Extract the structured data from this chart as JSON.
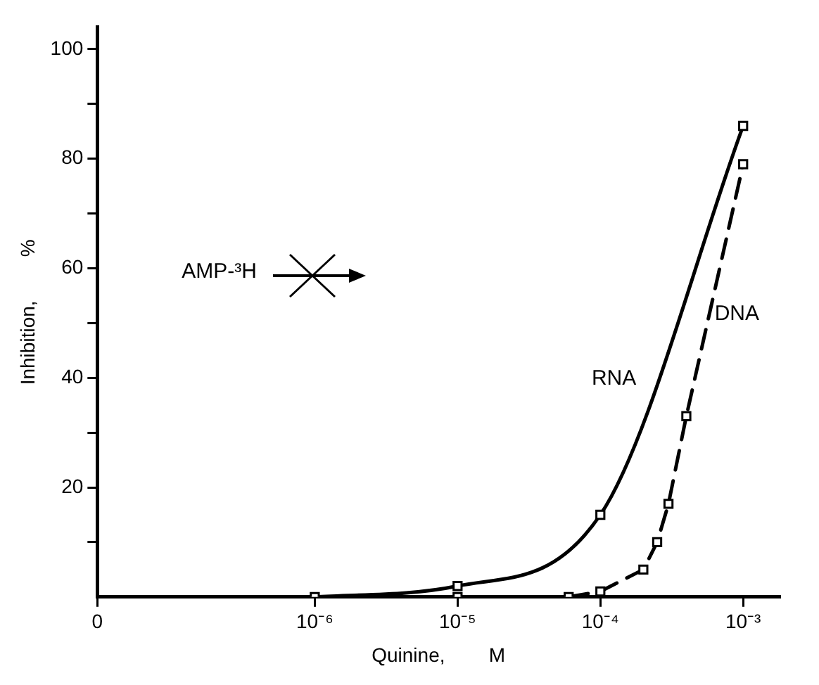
{
  "chart_data": {
    "type": "line",
    "xlabel": "Quinine,        M",
    "ylabel": "Inhibition,        %",
    "log": "x",
    "xlim": [
      3e-08,
      0.0018
    ],
    "xticks": [
      {
        "value": 3e-08,
        "label": "0"
      },
      {
        "value": 1e-06,
        "label": "10⁻⁶"
      },
      {
        "value": 1e-05,
        "label": "10⁻⁵"
      },
      {
        "value": 0.0001,
        "label": "10⁻⁴"
      },
      {
        "value": 0.001,
        "label": "10⁻³"
      }
    ],
    "ylim": [
      0,
      104
    ],
    "yticks": [
      {
        "value": 10,
        "label": null
      },
      20,
      {
        "value": 30,
        "label": null
      },
      40,
      {
        "value": 50,
        "label": null
      },
      60,
      {
        "value": 70,
        "label": null
      },
      80,
      {
        "value": 90,
        "label": null
      },
      100
    ],
    "grid": false,
    "legend": false,
    "marker": "square",
    "annotations": [
      "AMP-³H"
    ],
    "series": [
      {
        "name": "RNA",
        "color": "#000000",
        "line_style": "solid",
        "x": [
          1e-06,
          1e-05,
          0.0001,
          0.001
        ],
        "values": [
          0,
          2,
          15,
          86
        ]
      },
      {
        "name": "DNA",
        "color": "#000000",
        "line_style": "dashed",
        "x": [
          1e-05,
          3e-05,
          6e-05,
          0.0001,
          0.0002,
          0.00025,
          0.0003,
          0.0004,
          0.001
        ],
        "values": [
          0,
          null,
          0,
          1,
          5,
          10,
          17,
          33,
          79
        ]
      }
    ]
  }
}
